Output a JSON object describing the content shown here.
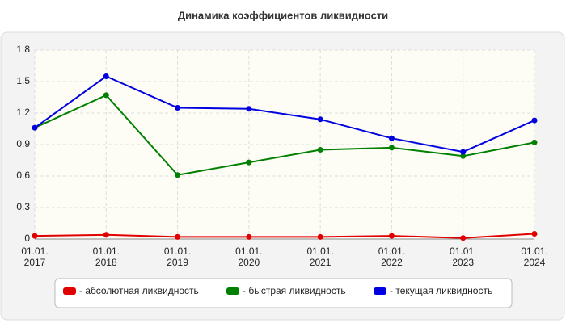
{
  "chart_data": {
    "type": "line",
    "title": "Динамика коэффициентов ликвидности",
    "categories": [
      "01.01.\n2017",
      "01.01.\n2018",
      "01.01.\n2019",
      "01.01.\n2020",
      "01.01.\n2021",
      "01.01.\n2022",
      "01.01.\n2023",
      "01.01.\n2024"
    ],
    "series": [
      {
        "name": "- абсолютная ликвидность",
        "color": "#e00000",
        "values": [
          0.03,
          0.04,
          0.02,
          0.02,
          0.02,
          0.03,
          0.01,
          0.05
        ]
      },
      {
        "name": "- быстрая ликвидность",
        "color": "#008000",
        "values": [
          1.06,
          1.37,
          0.61,
          0.73,
          0.85,
          0.87,
          0.79,
          0.92
        ]
      },
      {
        "name": "- текущая ликвидность",
        "color": "#0000e0",
        "values": [
          1.06,
          1.55,
          1.25,
          1.24,
          1.14,
          0.96,
          0.83,
          1.13
        ]
      }
    ],
    "ylim": [
      0,
      1.8
    ],
    "yticks": [
      0,
      0.3,
      0.6,
      0.9,
      1.2,
      1.5,
      1.8
    ],
    "grid": true,
    "legend": "bottom"
  }
}
